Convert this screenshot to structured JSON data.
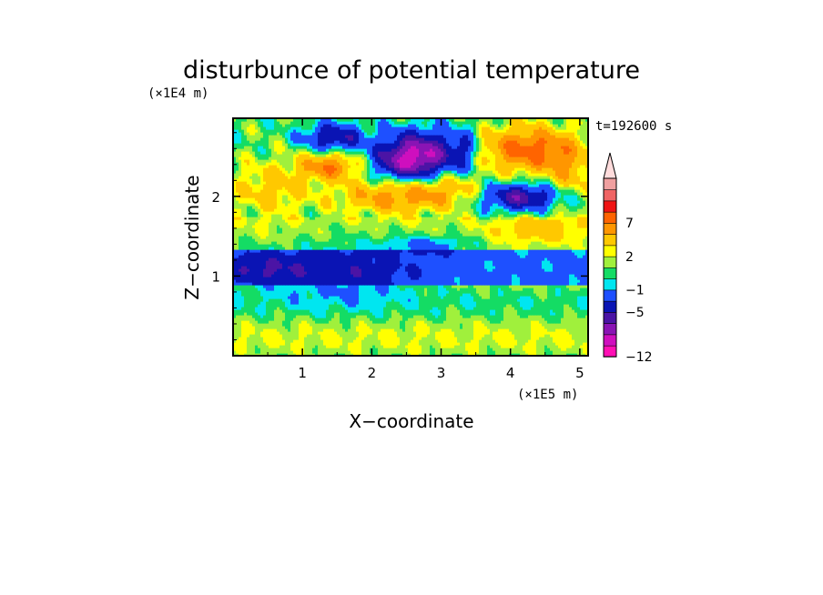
{
  "chart_data": {
    "type": "heatmap",
    "title": "disturbunce of potential temperature",
    "xlabel": "X−coordinate",
    "ylabel": "Z−coordinate",
    "x_unit": "(×1E5 m)",
    "y_unit": "(×1E4 m)",
    "time_label": "t=192600 s",
    "xlim": [
      0,
      5.12
    ],
    "ylim": [
      0,
      2.98
    ],
    "x_ticks": [
      "1",
      "2",
      "3",
      "4",
      "5"
    ],
    "x_tick_values": [
      1,
      2,
      3,
      4,
      5
    ],
    "y_ticks": [
      "1",
      "2"
    ],
    "y_tick_values": [
      1,
      2
    ],
    "colorbar": {
      "levels": [
        -12,
        -11,
        -9,
        -7,
        -5,
        -3,
        -1,
        0,
        1,
        2,
        3,
        5,
        7,
        9,
        11,
        13
      ],
      "colors": [
        "#ff0fb4",
        "#cf0fbe",
        "#8a14b4",
        "#4b14a5",
        "#0a14b4",
        "#1e50ff",
        "#00e6f0",
        "#14dc64",
        "#a0f03c",
        "#ffff00",
        "#ffc800",
        "#ff9600",
        "#ff6400",
        "#f01414",
        "#f06464",
        "#f0a0a0"
      ],
      "extend_color": "#ffdcdc",
      "tick_labels": [
        "7",
        "2",
        "−1",
        "−5",
        "−12"
      ],
      "tick_values": [
        7,
        2,
        -1,
        -5,
        -12
      ]
    },
    "grid": false,
    "legend": "colorbar-right",
    "features": [
      {
        "x": 1.45,
        "z": 2.75,
        "sx": 0.3,
        "sz": 0.12,
        "a": -6
      },
      {
        "x": 2.7,
        "z": 2.55,
        "sx": 0.4,
        "sz": 0.2,
        "a": -9
      },
      {
        "x": 2.45,
        "z": 2.4,
        "sx": 0.3,
        "sz": 0.15,
        "a": -4
      },
      {
        "x": 4.15,
        "z": 2.0,
        "sx": 0.4,
        "sz": 0.12,
        "a": -7
      },
      {
        "x": 3.35,
        "z": 2.6,
        "sx": 0.15,
        "sz": 0.2,
        "a": -3
      },
      {
        "x": 1.4,
        "z": 2.38,
        "sx": 0.3,
        "sz": 0.12,
        "a": 6
      },
      {
        "x": 4.25,
        "z": 2.6,
        "sx": 0.5,
        "sz": 0.2,
        "a": 7
      },
      {
        "x": 2.3,
        "z": 2.0,
        "sx": 0.55,
        "sz": 0.15,
        "a": 5
      },
      {
        "x": 3.1,
        "z": 2.1,
        "sx": 0.35,
        "sz": 0.15,
        "a": 3
      },
      {
        "x": 4.4,
        "z": 1.6,
        "sx": 0.45,
        "sz": 0.12,
        "a": 3
      },
      {
        "x": 0.55,
        "z": 2.1,
        "sx": 0.4,
        "sz": 0.25,
        "a": 3
      },
      {
        "x": 4.85,
        "z": 2.3,
        "sx": 0.25,
        "sz": 0.25,
        "a": 3
      },
      {
        "x": 2.8,
        "z": 1.4,
        "sx": 0.45,
        "sz": 0.08,
        "a": -3
      },
      {
        "x": 1.6,
        "z": 1.05,
        "sx": 0.7,
        "sz": 0.25,
        "a": -3
      },
      {
        "x": 0.4,
        "z": 1.1,
        "sx": 0.4,
        "sz": 0.15,
        "a": -3
      }
    ]
  }
}
